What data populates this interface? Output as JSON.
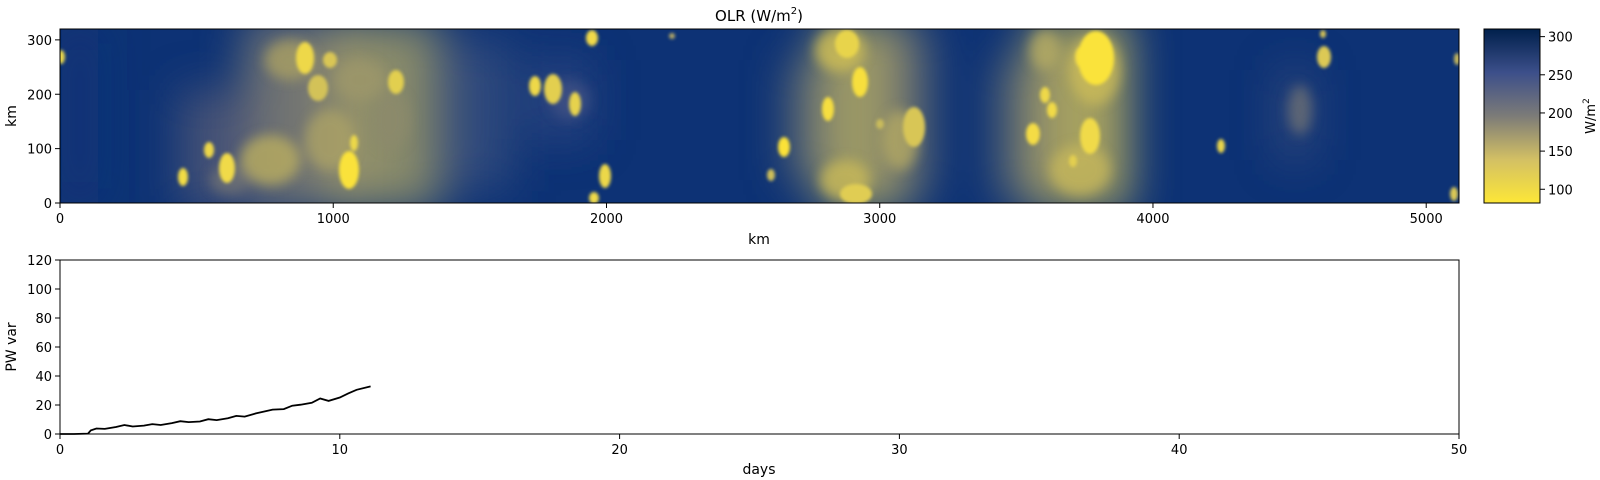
{
  "chart_data": [
    {
      "type": "heatmap",
      "title": "OLR (W/m",
      "title_sup": "2",
      "title_close": ")",
      "xlabel": "km",
      "ylabel": "km",
      "xlim": [
        0,
        5120
      ],
      "ylim": [
        0,
        320
      ],
      "xticks": [
        0,
        1000,
        2000,
        3000,
        4000,
        5000
      ],
      "yticks": [
        0,
        100,
        200,
        300
      ],
      "colormap": "cividis_r",
      "colorbar": {
        "label": "W/m",
        "label_sup": "2",
        "range": [
          82,
          310
        ],
        "ticks": [
          100,
          150,
          200,
          250,
          300
        ],
        "low_color": "#fde737",
        "mid_color": "#7c7b78",
        "high_color": "#00204c"
      },
      "convective_bands_km": [
        [
          750,
          1300
        ],
        [
          2750,
          3150
        ],
        [
          3550,
          3950
        ]
      ]
    },
    {
      "type": "line",
      "xlabel": "days",
      "ylabel": "PW var",
      "xlim": [
        0,
        50
      ],
      "ylim": [
        0,
        120
      ],
      "xticks": [
        0,
        10,
        20,
        30,
        40,
        50
      ],
      "yticks": [
        0,
        20,
        40,
        60,
        80,
        100,
        120
      ],
      "line_color": "#000000",
      "x": [
        0,
        0.5,
        1.0,
        1.1,
        1.3,
        1.6,
        2.0,
        2.3,
        2.6,
        3.0,
        3.3,
        3.6,
        4.0,
        4.3,
        4.6,
        5.0,
        5.3,
        5.6,
        6.0,
        6.3,
        6.6,
        7.0,
        7.3,
        7.6,
        8.0,
        8.3,
        8.6,
        9.0,
        9.3,
        9.6,
        10.0,
        10.3,
        10.6,
        11.1
      ],
      "y": [
        0,
        0,
        0.3,
        2.5,
        3.8,
        3.5,
        4.8,
        6.2,
        5.2,
        5.8,
        6.8,
        6.2,
        7.5,
        8.8,
        8.2,
        8.6,
        10.2,
        9.6,
        10.8,
        12.5,
        12.0,
        14.2,
        15.5,
        16.8,
        17.2,
        19.5,
        20.2,
        21.5,
        24.5,
        22.8,
        25.2,
        28.0,
        30.5,
        32.8
      ]
    }
  ]
}
